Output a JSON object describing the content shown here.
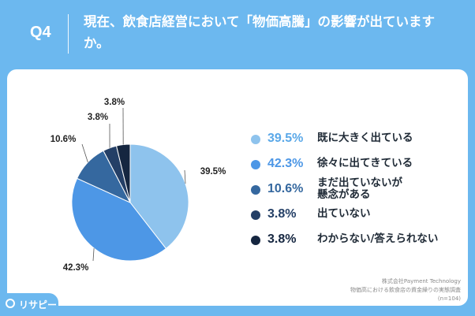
{
  "header": {
    "q_label": "Q4",
    "question": "現在、飲食店経営において「物価高騰」の影響が出ていますか。"
  },
  "chart_data": {
    "type": "pie",
    "categories": [
      "既に大きく出ている",
      "徐々に出てきている",
      "まだ出ていないが懸念がある",
      "出ていない",
      "わからない/答えられない"
    ],
    "values": [
      39.5,
      42.3,
      10.6,
      3.8,
      3.8
    ],
    "value_labels": [
      "39.5%",
      "42.3%",
      "10.6%",
      "3.8%",
      "3.8%"
    ],
    "colors": [
      "#8ec3ed",
      "#4d97e6",
      "#35689f",
      "#243f66",
      "#152640"
    ],
    "legend_placement": "right"
  },
  "credit": {
    "line1": "株式会社Payment Technology",
    "line2": "物価高における飲食店の資金繰りの実態調査",
    "line3": "(n=104)"
  },
  "logo": {
    "text": "リサピー"
  }
}
